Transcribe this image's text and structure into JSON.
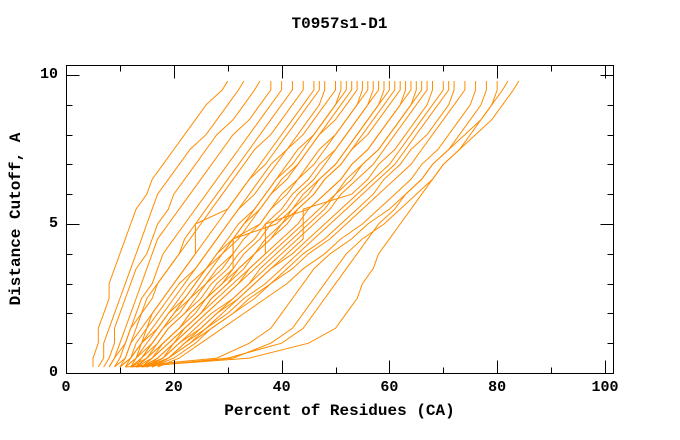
{
  "chart_data": {
    "type": "line",
    "title": "T0957s1-D1",
    "xlabel": "Percent of Residues (CA)",
    "ylabel": "Distance Cutoff, A",
    "xlim": [
      0,
      100
    ],
    "ylim": [
      0,
      10
    ],
    "grid": false,
    "legend": "none",
    "line_color": "#ff8c00",
    "axis_color": "#000000",
    "background_color": "#ffffff",
    "x_ticks_major": [
      0,
      20,
      40,
      60,
      80,
      100
    ],
    "x_ticks_minor": [
      10,
      30,
      50,
      70,
      90
    ],
    "y_ticks_major": [
      0,
      5,
      10
    ],
    "y_ticks_minor": [
      1,
      2,
      3,
      4,
      6,
      7,
      8,
      9
    ],
    "x_tick_labels": [
      "0",
      "20",
      "40",
      "60",
      "80",
      "100"
    ],
    "y_tick_labels": [
      "0",
      "5",
      "10"
    ],
    "cutoffs": [
      0.2,
      0.5,
      1.0,
      1.5,
      2.0,
      2.5,
      3.0,
      3.5,
      4.0,
      4.5,
      5.0,
      5.5,
      6.0,
      6.5,
      7.0,
      7.5,
      8.0,
      8.5,
      9.0,
      9.5,
      9.8
    ],
    "series": [
      [
        5,
        5,
        6,
        6,
        7,
        8,
        8,
        9,
        10,
        11,
        12,
        13,
        15,
        16,
        18,
        20,
        22,
        24,
        26,
        29,
        30
      ],
      [
        6,
        7,
        7,
        8,
        9,
        10,
        11,
        12,
        13,
        14,
        15,
        16,
        17,
        19,
        21,
        23,
        26,
        28,
        30,
        32,
        33
      ],
      [
        7,
        8,
        9,
        9,
        10,
        11,
        12,
        13,
        15,
        16,
        17,
        19,
        20,
        22,
        24,
        26,
        28,
        31,
        33,
        35,
        36
      ],
      [
        8,
        9,
        10,
        11,
        12,
        13,
        14,
        15,
        16,
        17,
        19,
        21,
        23,
        25,
        27,
        29,
        31,
        34,
        36,
        38,
        38
      ],
      [
        9,
        10,
        11,
        12,
        13,
        14,
        16,
        17,
        18,
        20,
        22,
        24,
        26,
        28,
        30,
        32,
        34,
        36,
        38,
        40,
        40
      ],
      [
        10,
        11,
        12,
        13,
        14,
        16,
        17,
        19,
        21,
        22,
        24,
        26,
        28,
        30,
        32,
        34,
        36,
        38,
        40,
        42,
        42
      ],
      [
        8,
        9,
        11,
        12,
        14,
        15,
        17,
        19,
        21,
        23,
        25,
        27,
        29,
        31,
        33,
        35,
        38,
        40,
        42,
        44,
        44
      ],
      [
        11,
        12,
        13,
        15,
        16,
        18,
        20,
        22,
        24,
        26,
        28,
        30,
        32,
        34,
        36,
        38,
        40,
        42,
        44,
        46,
        46
      ],
      [
        9,
        11,
        12,
        14,
        16,
        18,
        20,
        22,
        24,
        24,
        24,
        30,
        32,
        34,
        37,
        39,
        41,
        43,
        45,
        47,
        47
      ],
      [
        12,
        13,
        14,
        16,
        18,
        20,
        22,
        24,
        26,
        28,
        30,
        32,
        34,
        36,
        38,
        41,
        43,
        45,
        47,
        48,
        48
      ],
      [
        10,
        12,
        14,
        15,
        17,
        19,
        21,
        24,
        26,
        28,
        30,
        32,
        35,
        37,
        39,
        41,
        44,
        46,
        48,
        50,
        50
      ],
      [
        13,
        14,
        16,
        18,
        20,
        22,
        24,
        26,
        28,
        31,
        33,
        35,
        37,
        39,
        41,
        43,
        46,
        48,
        50,
        51,
        51
      ],
      [
        11,
        13,
        15,
        17,
        19,
        21,
        23,
        26,
        28,
        30,
        32,
        35,
        37,
        39,
        42,
        44,
        46,
        48,
        50,
        52,
        52
      ],
      [
        12,
        14,
        16,
        18,
        20,
        23,
        25,
        27,
        29,
        32,
        34,
        36,
        38,
        41,
        43,
        45,
        47,
        49,
        51,
        53,
        53
      ],
      [
        10,
        12,
        14,
        17,
        19,
        22,
        24,
        26,
        29,
        31,
        33,
        36,
        38,
        40,
        43,
        45,
        47,
        50,
        52,
        54,
        54
      ],
      [
        13,
        15,
        17,
        19,
        22,
        24,
        26,
        29,
        31,
        33,
        36,
        38,
        40,
        43,
        45,
        47,
        50,
        52,
        54,
        55,
        55
      ],
      [
        11,
        13,
        16,
        18,
        21,
        23,
        26,
        28,
        31,
        31,
        36,
        38,
        41,
        43,
        46,
        48,
        50,
        52,
        54,
        56,
        56
      ],
      [
        14,
        16,
        18,
        21,
        23,
        26,
        28,
        31,
        33,
        36,
        38,
        41,
        43,
        46,
        48,
        50,
        52,
        54,
        56,
        57,
        57
      ],
      [
        12,
        14,
        17,
        19,
        22,
        25,
        27,
        30,
        32,
        35,
        37,
        40,
        42,
        45,
        47,
        50,
        52,
        54,
        56,
        58,
        58
      ],
      [
        15,
        17,
        20,
        22,
        25,
        27,
        30,
        32,
        35,
        37,
        40,
        42,
        45,
        47,
        50,
        52,
        54,
        56,
        58,
        59,
        59
      ],
      [
        13,
        15,
        18,
        21,
        23,
        26,
        29,
        31,
        31,
        31,
        39,
        42,
        44,
        47,
        50,
        52,
        54,
        56,
        58,
        60,
        60
      ],
      [
        14,
        16,
        19,
        22,
        25,
        27,
        30,
        33,
        35,
        38,
        41,
        43,
        46,
        48,
        51,
        53,
        55,
        57,
        59,
        61,
        61
      ],
      [
        12,
        15,
        18,
        21,
        24,
        26,
        29,
        32,
        35,
        38,
        40,
        43,
        46,
        48,
        51,
        53,
        56,
        58,
        60,
        62,
        62
      ],
      [
        15,
        18,
        20,
        23,
        26,
        29,
        32,
        34,
        37,
        40,
        43,
        45,
        48,
        51,
        53,
        56,
        58,
        60,
        62,
        63,
        63
      ],
      [
        13,
        16,
        19,
        22,
        25,
        28,
        31,
        34,
        37,
        37,
        37,
        45,
        48,
        51,
        53,
        56,
        58,
        60,
        62,
        64,
        64
      ],
      [
        16,
        19,
        22,
        25,
        28,
        31,
        34,
        36,
        39,
        42,
        45,
        48,
        50,
        53,
        55,
        58,
        60,
        62,
        64,
        65,
        65
      ],
      [
        14,
        17,
        20,
        23,
        26,
        29,
        32,
        35,
        38,
        41,
        44,
        47,
        50,
        52,
        55,
        58,
        60,
        62,
        64,
        66,
        66
      ],
      [
        15,
        18,
        21,
        24,
        27,
        31,
        34,
        37,
        40,
        43,
        46,
        49,
        51,
        54,
        57,
        59,
        61,
        63,
        65,
        67,
        67
      ],
      [
        16,
        19,
        22,
        26,
        29,
        32,
        35,
        38,
        41,
        44,
        44,
        44,
        53,
        56,
        58,
        61,
        63,
        65,
        67,
        68,
        68
      ],
      [
        14,
        18,
        21,
        25,
        28,
        32,
        35,
        38,
        42,
        45,
        48,
        51,
        54,
        57,
        60,
        62,
        64,
        66,
        68,
        70,
        70
      ],
      [
        15,
        19,
        23,
        26,
        30,
        33,
        37,
        40,
        43,
        46,
        49,
        52,
        55,
        58,
        61,
        63,
        65,
        67,
        69,
        71,
        71
      ],
      [
        16,
        20,
        24,
        27,
        31,
        34,
        38,
        41,
        44,
        48,
        51,
        54,
        57,
        59,
        62,
        64,
        67,
        69,
        71,
        72,
        72
      ],
      [
        15,
        19,
        23,
        27,
        31,
        35,
        38,
        42,
        45,
        49,
        52,
        55,
        58,
        61,
        64,
        66,
        68,
        70,
        72,
        74,
        74
      ],
      [
        17,
        21,
        25,
        29,
        33,
        37,
        41,
        44,
        48,
        51,
        55,
        58,
        61,
        64,
        66,
        69,
        71,
        73,
        75,
        76,
        76
      ],
      [
        11,
        28,
        34,
        38,
        40,
        42,
        44,
        46,
        49,
        53,
        56,
        60,
        63,
        66,
        68,
        71,
        73,
        75,
        77,
        78,
        78
      ],
      [
        13,
        31,
        38,
        42,
        44,
        46,
        48,
        50,
        52,
        55,
        59,
        62,
        65,
        68,
        70,
        73,
        75,
        77,
        79,
        80,
        80
      ],
      [
        14,
        30,
        40,
        44,
        46,
        48,
        50,
        52,
        54,
        56,
        58,
        61,
        63,
        66,
        68,
        71,
        74,
        77,
        79,
        81,
        82
      ],
      [
        12,
        34,
        45,
        50,
        52,
        54,
        55,
        57,
        58,
        60,
        62,
        64,
        66,
        68,
        70,
        73,
        76,
        79,
        81,
        83,
        84
      ]
    ]
  }
}
